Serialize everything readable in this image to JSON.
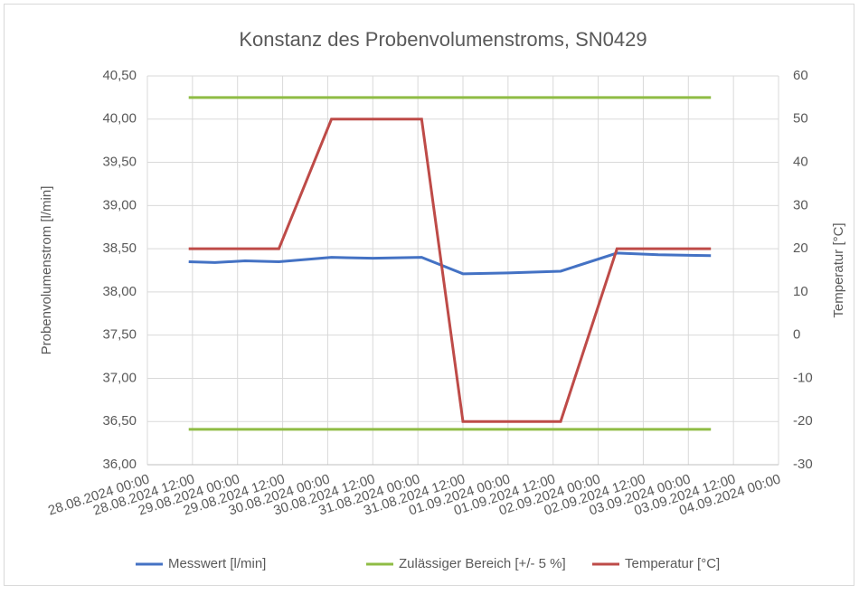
{
  "chart_data": {
    "type": "line",
    "title": "Konstanz des Probenvolumenstroms, SN0429",
    "y_label": "Probenvolumenstrom [l/min]",
    "y2_label": "Temperatur [°C]",
    "xlim": [
      "28.08.2024 00:00",
      "04.09.2024 00:00"
    ],
    "xticks": [
      "28.08.2024 00:00",
      "28.08.2024 12:00",
      "29.08.2024 00:00",
      "29.08.2024 12:00",
      "30.08.2024 00:00",
      "30.08.2024 12:00",
      "31.08.2024 00:00",
      "31.08.2024 12:00",
      "01.09.2024 00:00",
      "01.09.2024 12:00",
      "02.09.2024 00:00",
      "02.09.2024 12:00",
      "03.09.2024 00:00",
      "03.09.2024 12:00",
      "04.09.2024 00:00"
    ],
    "ylim": [
      36.0,
      40.5
    ],
    "yticks": [
      {
        "value": 36.0,
        "label": "36,00"
      },
      {
        "value": 36.5,
        "label": "36,50"
      },
      {
        "value": 37.0,
        "label": "37,00"
      },
      {
        "value": 37.5,
        "label": "37,50"
      },
      {
        "value": 38.0,
        "label": "38,00"
      },
      {
        "value": 38.5,
        "label": "38,50"
      },
      {
        "value": 39.0,
        "label": "39,00"
      },
      {
        "value": 39.5,
        "label": "39,50"
      },
      {
        "value": 40.0,
        "label": "40,00"
      },
      {
        "value": 40.5,
        "label": "40,50"
      }
    ],
    "y2lim": [
      -30,
      60
    ],
    "y2ticks": [
      -30,
      -20,
      -10,
      0,
      10,
      20,
      30,
      40,
      50,
      60
    ],
    "grid": true,
    "legend": "bottom",
    "series": [
      {
        "name": "Messwert [l/min]",
        "color": "#4472c4",
        "x": [
          "28.08.2024 11:00",
          "28.08.2024 18:00",
          "29.08.2024 02:00",
          "29.08.2024 11:00",
          "30.08.2024 01:00",
          "30.08.2024 12:00",
          "31.08.2024 01:00",
          "31.08.2024 12:00",
          "01.09.2024 00:00",
          "01.09.2024 14:00",
          "02.09.2024 05:00",
          "02.09.2024 16:00",
          "03.09.2024 06:00"
        ],
        "values": [
          38.35,
          38.34,
          38.36,
          38.35,
          38.4,
          38.39,
          38.4,
          38.21,
          38.22,
          38.24,
          38.45,
          38.43,
          38.42
        ]
      },
      {
        "name": "Zulässiger Bereich [+/- 5 %]",
        "color": "#8fbc45",
        "x": [
          "28.08.2024 11:00",
          "03.09.2024 06:00"
        ],
        "upper": [
          40.25,
          40.25
        ],
        "lower": [
          36.41,
          36.41
        ]
      },
      {
        "name": "Temperatur [°C]",
        "color": "#be4b48",
        "axis": "y2",
        "x": [
          "28.08.2024 11:00",
          "29.08.2024 11:00",
          "30.08.2024 01:00",
          "31.08.2024 01:00",
          "31.08.2024 12:00",
          "01.09.2024 14:00",
          "02.09.2024 05:00",
          "03.09.2024 06:00"
        ],
        "values": [
          20,
          20,
          50,
          50,
          -20,
          -20,
          20,
          20
        ]
      }
    ]
  }
}
